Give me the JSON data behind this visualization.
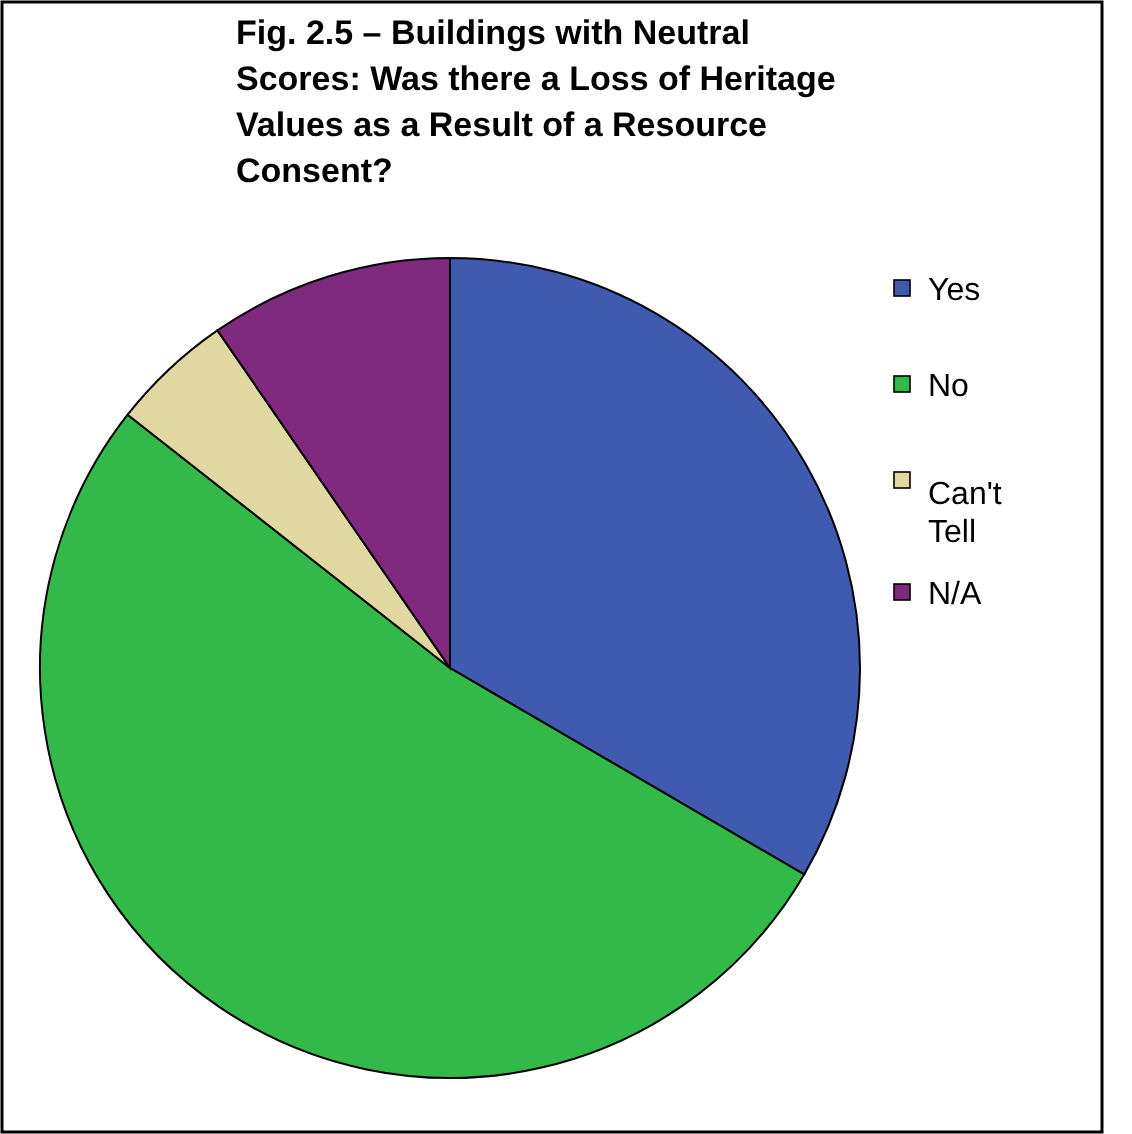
{
  "chart_data": {
    "type": "pie",
    "title": "Fig. 2.5 – Buildings with Neutral Scores: Was there a Loss of Heritage Values as a Result of a Resource Consent?",
    "categories": [
      "Yes",
      "No",
      "Can't Tell",
      "N/A"
    ],
    "values": [
      33.4,
      52.2,
      4.8,
      9.6
    ],
    "colors": [
      "#3f5aaf",
      "#33b84a",
      "#e0d8a0",
      "#7f2a7f"
    ],
    "legend": "right"
  }
}
